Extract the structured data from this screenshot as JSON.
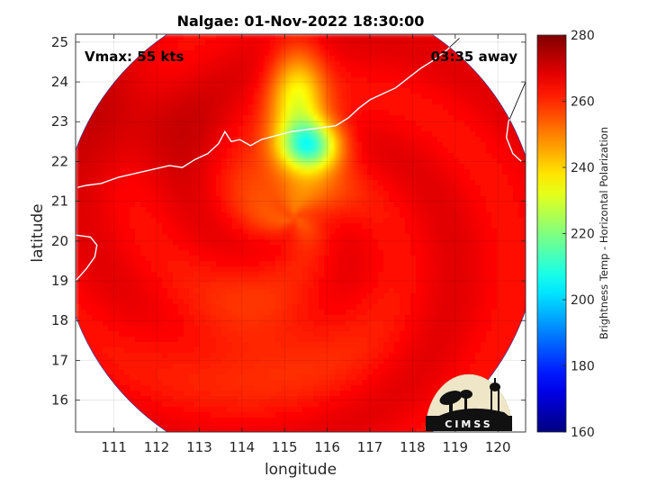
{
  "chart_data": {
    "type": "heatmap",
    "title": "Nalgae: 01-Nov-2022 18:30:00",
    "xlabel": "longitude",
    "ylabel": "latitude",
    "xlim": [
      110.1,
      120.65
    ],
    "ylim": [
      15.2,
      25.2
    ],
    "xticks": [
      111,
      112,
      113,
      114,
      115,
      116,
      117,
      118,
      119,
      120
    ],
    "yticks": [
      16,
      17,
      18,
      19,
      20,
      21,
      22,
      23,
      24,
      25
    ],
    "grid": true,
    "annotations": {
      "vmax": "Vmax: 55 kts",
      "time_away": "03:35 away"
    },
    "colorbar": {
      "label": "Brightness Temp - Horizontal Polarization",
      "min": 160,
      "max": 280,
      "ticks": [
        160,
        180,
        200,
        220,
        240,
        260,
        280
      ],
      "colormap": "jet"
    },
    "swath": {
      "center_lon": 115.35,
      "center_lat": 20.2,
      "radius_deg": 5.6
    },
    "field": {
      "background_value": 266,
      "features": [
        {
          "kind": "warm-core-low-tb",
          "lon": 115.6,
          "lat": 22.4,
          "sigma_lon": 0.5,
          "sigma_lat": 0.45,
          "value": 218
        },
        {
          "kind": "northern-band",
          "lon": 115.3,
          "lat": 23.6,
          "sigma_lon": 0.45,
          "sigma_lat": 0.9,
          "value": 236
        },
        {
          "kind": "inner-core",
          "lon": 115.2,
          "lat": 21.2,
          "sigma_lon": 0.9,
          "sigma_lat": 0.8,
          "value": 252
        },
        {
          "kind": "southern-band",
          "lon": 114.4,
          "lat": 17.6,
          "sigma_lon": 1.6,
          "sigma_lat": 1.0,
          "value": 258
        },
        {
          "kind": "northwest-cold",
          "lon": 111.5,
          "lat": 23.0,
          "sigma_lon": 1.2,
          "sigma_lat": 1.0,
          "value": 272
        }
      ]
    },
    "coastline": [
      [
        110.15,
        21.35
      ],
      [
        110.35,
        21.4
      ],
      [
        110.7,
        21.45
      ],
      [
        111.1,
        21.6
      ],
      [
        111.5,
        21.7
      ],
      [
        111.9,
        21.8
      ],
      [
        112.3,
        21.9
      ],
      [
        112.6,
        21.85
      ],
      [
        112.9,
        22.05
      ],
      [
        113.2,
        22.2
      ],
      [
        113.45,
        22.45
      ],
      [
        113.6,
        22.75
      ],
      [
        113.75,
        22.5
      ],
      [
        113.95,
        22.55
      ],
      [
        114.2,
        22.4
      ],
      [
        114.45,
        22.55
      ],
      [
        114.8,
        22.65
      ],
      [
        115.15,
        22.75
      ],
      [
        115.5,
        22.8
      ],
      [
        115.85,
        22.85
      ],
      [
        116.2,
        22.9
      ],
      [
        116.5,
        23.1
      ],
      [
        116.75,
        23.35
      ],
      [
        117.0,
        23.55
      ],
      [
        117.3,
        23.7
      ],
      [
        117.6,
        23.85
      ],
      [
        117.9,
        24.1
      ],
      [
        118.2,
        24.35
      ],
      [
        118.5,
        24.55
      ],
      [
        118.8,
        24.8
      ],
      [
        119.1,
        25.1
      ]
    ],
    "hainan_coast": [
      [
        110.1,
        20.15
      ],
      [
        110.45,
        20.1
      ],
      [
        110.6,
        19.9
      ],
      [
        110.55,
        19.6
      ],
      [
        110.35,
        19.3
      ],
      [
        110.1,
        19.0
      ]
    ],
    "taiwan_coast": [
      [
        120.65,
        24.0
      ],
      [
        120.45,
        23.5
      ],
      [
        120.25,
        23.0
      ],
      [
        120.2,
        22.6
      ],
      [
        120.35,
        22.2
      ],
      [
        120.55,
        22.0
      ]
    ]
  },
  "logo": {
    "text": "CIMSS"
  }
}
